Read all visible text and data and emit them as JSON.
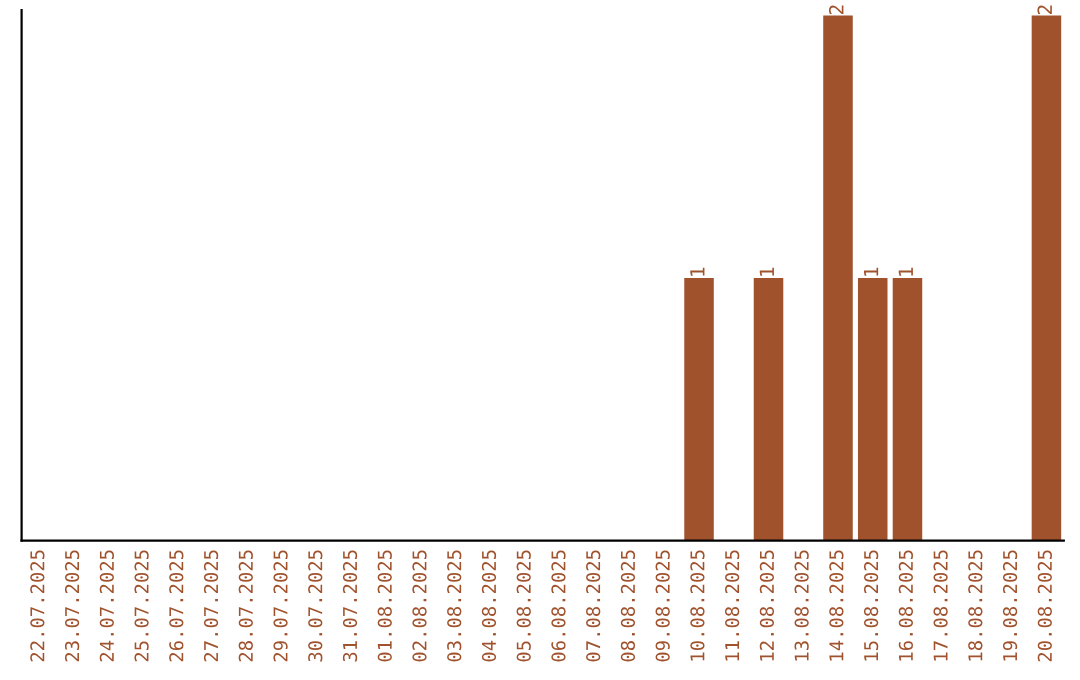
{
  "chart_data": {
    "type": "bar",
    "categories": [
      "22.07.2025",
      "23.07.2025",
      "24.07.2025",
      "25.07.2025",
      "26.07.2025",
      "27.07.2025",
      "28.07.2025",
      "29.07.2025",
      "30.07.2025",
      "31.07.2025",
      "01.08.2025",
      "02.08.2025",
      "03.08.2025",
      "04.08.2025",
      "05.08.2025",
      "06.08.2025",
      "07.08.2025",
      "08.08.2025",
      "09.08.2025",
      "10.08.2025",
      "11.08.2025",
      "12.08.2025",
      "13.08.2025",
      "14.08.2025",
      "15.08.2025",
      "16.08.2025",
      "17.08.2025",
      "18.08.2025",
      "19.08.2025",
      "20.08.2025"
    ],
    "values": [
      null,
      null,
      null,
      null,
      null,
      null,
      null,
      null,
      null,
      null,
      null,
      null,
      null,
      null,
      null,
      null,
      null,
      null,
      null,
      1,
      null,
      1,
      null,
      2,
      1,
      1,
      null,
      null,
      null,
      2
    ],
    "data_labels": true,
    "color": "#a0522d",
    "tick_labels": "x",
    "grid": false,
    "legend": false
  }
}
